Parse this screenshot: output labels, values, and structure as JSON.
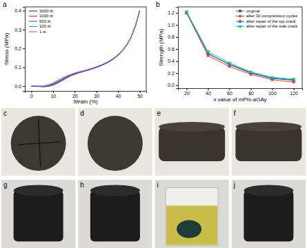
{
  "chart_data": [
    {
      "type": "line",
      "title": "a",
      "xlabel": "Strain (%)",
      "ylabel": "Stress (MPa)",
      "x": [
        0,
        2,
        4,
        6,
        8,
        10,
        12,
        14,
        16,
        18,
        20,
        22,
        24,
        26,
        28,
        30,
        32,
        34,
        36,
        38,
        40,
        42,
        44,
        46,
        48,
        50
      ],
      "series": [
        {
          "name": "3000 th",
          "color": "#222222",
          "values": [
            0,
            0,
            -0.002,
            -0.003,
            0,
            0.006,
            0.016,
            0.029,
            0.042,
            0.054,
            0.063,
            0.071,
            0.078,
            0.084,
            0.091,
            0.099,
            0.108,
            0.118,
            0.13,
            0.145,
            0.163,
            0.187,
            0.217,
            0.258,
            0.318,
            0.4
          ]
        },
        {
          "name": "1000 th",
          "color": "#e8231f",
          "values": [
            0,
            0,
            -0.002,
            -0.002,
            0.001,
            0.008,
            0.019,
            0.032,
            0.045,
            0.056,
            0.065,
            0.073,
            0.079,
            0.085,
            0.092,
            0.1,
            0.109,
            0.119,
            0.131,
            0.146,
            0.164,
            0.188,
            0.218,
            0.259,
            0.319,
            0.4
          ]
        },
        {
          "name": "500 th",
          "color": "#2050e0",
          "values": [
            0,
            0.001,
            -0.001,
            -0.001,
            0.003,
            0.011,
            0.022,
            0.035,
            0.047,
            0.058,
            0.066,
            0.074,
            0.08,
            0.086,
            0.093,
            0.101,
            0.11,
            0.12,
            0.132,
            0.147,
            0.165,
            0.189,
            0.219,
            0.26,
            0.32,
            0.4
          ]
        },
        {
          "name": "100 th",
          "color": "#1aa39a",
          "values": [
            0,
            0.002,
            0,
            0,
            0.005,
            0.014,
            0.026,
            0.038,
            0.05,
            0.06,
            0.068,
            0.075,
            0.081,
            0.087,
            0.094,
            0.102,
            0.111,
            0.121,
            0.133,
            0.148,
            0.166,
            0.19,
            0.22,
            0.26,
            0.32,
            0.4
          ]
        },
        {
          "name": "1 st",
          "color": "#c43fd8",
          "values": [
            0,
            0.002,
            0,
            0.002,
            0.008,
            0.018,
            0.03,
            0.042,
            0.053,
            0.062,
            0.07,
            0.076,
            0.082,
            0.088,
            0.095,
            0.103,
            0.112,
            0.122,
            0.134,
            0.149,
            0.167,
            0.19,
            0.22,
            0.26,
            0.32,
            0.4
          ]
        }
      ],
      "xlim": [
        -3,
        53
      ],
      "xticks": [
        0,
        10,
        20,
        30,
        40,
        50
      ],
      "ylim": [
        -0.025,
        0.42
      ],
      "yticks": [
        {
          "value": 0,
          "label": "0.0"
        },
        0.1,
        0.2,
        0.3,
        0.4
      ],
      "grid": false,
      "legend": "upper left"
    },
    {
      "type": "line",
      "title": "b",
      "xlabel": "x value of mPIx-aGAy",
      "ylabel": "Strength (MPa)",
      "x": [
        20,
        40,
        60,
        80,
        100,
        120
      ],
      "series": [
        {
          "name": "original",
          "color": "#1f6f4a",
          "marker": "square",
          "values": [
            1.21,
            0.52,
            0.35,
            0.21,
            0.12,
            0.09
          ]
        },
        {
          "name": "after 30 compression cycles",
          "color": "#ff3b2f",
          "marker": "circle",
          "values": [
            1.2,
            0.49,
            0.31,
            0.18,
            0.09,
            0.05
          ]
        },
        {
          "name": "after repair of the top crack",
          "color": "#3060d0",
          "marker": "triangle",
          "values": [
            1.2,
            0.53,
            0.34,
            0.2,
            0.11,
            0.08
          ]
        },
        {
          "name": "after repair of the side crack",
          "color": "#22c09a",
          "marker": "triangle-down",
          "values": [
            1.22,
            0.56,
            0.37,
            0.22,
            0.13,
            0.1
          ]
        }
      ],
      "xlim": [
        12,
        128
      ],
      "xticks": [
        20,
        40,
        60,
        80,
        100,
        120
      ],
      "ylim": [
        -0.05,
        1.3
      ],
      "yticks": [
        {
          "value": 0,
          "label": "0.0"
        },
        0.2,
        0.4,
        0.6,
        0.8,
        {
          "value": 1,
          "label": "1.0"
        },
        1.2
      ],
      "grid": false,
      "legend": "upper right"
    }
  ],
  "photo_panels": [
    "c",
    "d",
    "e",
    "f",
    "g",
    "h",
    "i",
    "j"
  ]
}
